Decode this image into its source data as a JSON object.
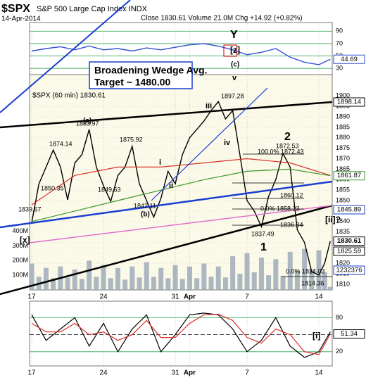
{
  "header": {
    "title": "$SPX",
    "subtitle": "S&P 500 Large Cap Index INDX",
    "date": "14-Apr-2014",
    "stats": "Close 1830.61 Volume 21.0M Chg +14.92 (+0.82%)"
  },
  "chart_data": [
    {
      "type": "line",
      "x": [
        0,
        1,
        2,
        3,
        4,
        5,
        6,
        7,
        8,
        9,
        10,
        11,
        12,
        13,
        14,
        15,
        16,
        17,
        18,
        19,
        20,
        20.8
      ],
      "series": [
        {
          "color": "#2f4fd3",
          "values": [
            58,
            62,
            65,
            60,
            66,
            60,
            62,
            58,
            63,
            60,
            64,
            68,
            70,
            66,
            60,
            52,
            56,
            62,
            48,
            40,
            36,
            44.69
          ]
        }
      ],
      "xlim": [
        -0.15,
        20.93
      ],
      "ylim": [
        20,
        104
      ],
      "yticks": [
        30,
        50,
        70,
        90
      ]
    },
    {
      "type": "line",
      "label": "$SPX (60 min) 1830.61",
      "x": [
        0,
        0.5,
        1,
        1.5,
        2,
        2.5,
        3,
        3.5,
        4,
        4.5,
        5,
        5.5,
        6,
        6.5,
        7,
        7.5,
        8,
        8.5,
        9,
        9.5,
        10,
        10.5,
        11,
        11.5,
        12,
        12.5,
        13,
        13.5,
        14,
        14.5,
        15,
        15.5,
        16,
        16.5,
        17,
        17.5,
        18,
        18.5,
        19,
        19.5,
        20,
        20.4,
        20.8
      ],
      "series": [
        {
          "color": "#000000",
          "values": [
            1839.57,
            1858,
            1866,
            1874.14,
            1866,
            1850.35,
            1868,
            1872,
            1883.97,
            1866,
            1857,
            1849.63,
            1862,
            1866,
            1875.92,
            1858,
            1850,
            1842.11,
            1851,
            1864,
            1858,
            1872,
            1880,
            1884,
            1888,
            1893,
            1897.28,
            1889,
            1893,
            1872,
            1850,
            1845,
            1837.49,
            1852,
            1860,
            1872.53,
            1866,
            1836,
            1830,
            1816,
            1814.36,
            1820,
            1830.61
          ]
        },
        {
          "color": "#d9302a",
          "x": [
            0,
            3,
            6,
            9,
            12,
            15,
            18,
            20.8
          ],
          "values": [
            1848,
            1862,
            1866,
            1866,
            1868,
            1870,
            1868,
            1862
          ]
        },
        {
          "color": "#3c9a2a",
          "x": [
            0,
            3,
            6,
            9,
            12,
            15,
            18,
            20.8
          ],
          "values": [
            1840,
            1845,
            1850,
            1855,
            1860,
            1864,
            1865,
            1861.87
          ]
        }
      ],
      "xlim": [
        -0.15,
        20.93
      ],
      "ylim": [
        1807.3,
        1910.2
      ],
      "yticks": [
        1810,
        1815,
        1820,
        1825,
        1830,
        1835,
        1840,
        1845,
        1850,
        1855,
        1860,
        1865,
        1870,
        1875,
        1880,
        1885,
        1890,
        1895,
        1900
      ],
      "xticks": [
        {
          "value": 0,
          "label": "17"
        },
        {
          "value": 5,
          "label": "24"
        },
        {
          "value": 10,
          "label": "31"
        },
        {
          "value": 11,
          "label": "Apr"
        },
        {
          "value": 15,
          "label": "7"
        },
        {
          "value": 20,
          "label": "14"
        }
      ],
      "grid": true,
      "volume": {
        "color": "#9aa6b8",
        "ylim": [
          0,
          1469
        ],
        "yticks": [
          {
            "value": 100,
            "label": "100M"
          },
          {
            "value": 200,
            "label": "200M"
          },
          {
            "value": 300,
            "label": "300M"
          },
          {
            "value": 400,
            "label": "400M"
          }
        ],
        "values": [
          180,
          90,
          150,
          80,
          160,
          85,
          140,
          75,
          200,
          90,
          170,
          80,
          150,
          70,
          160,
          85,
          190,
          90,
          150,
          80,
          170,
          75,
          160,
          80,
          180,
          90,
          160,
          85,
          230,
          110,
          250,
          120,
          220,
          100,
          210,
          95,
          260,
          130,
          280,
          140,
          270,
          120,
          21
        ]
      },
      "annotations": [
        "Y",
        "[z]",
        "(c)",
        "v",
        "Broadening Wedge Avg.",
        "Target ~ 1480.00",
        "1897.28",
        "iii",
        "iv",
        "(a)",
        "1883.97",
        "1874.14",
        "1875.92",
        "1850.35",
        "1849.63",
        "1842.11",
        "(b)",
        "i",
        "ii",
        "1839.57",
        "[x]",
        "2",
        "1872.53",
        "100.0% 1872.43",
        "1860.12",
        "0.0% 1858.23",
        "1836.34",
        "1837.49",
        "1",
        "0.0% 1814.03",
        "1814.36",
        "[i]",
        "[ii]?"
      ],
      "right_labels": [
        "1898.14",
        "1845.89",
        "1825.59",
        "1232376"
      ]
    },
    {
      "type": "line",
      "x": [
        0,
        1,
        2,
        3,
        4,
        5,
        6,
        7,
        8,
        9,
        10,
        11,
        12,
        13,
        14,
        15,
        16,
        17,
        18,
        19,
        20,
        20.8
      ],
      "series": [
        {
          "color": "#000000",
          "values": [
            85,
            40,
            60,
            80,
            30,
            70,
            20,
            60,
            85,
            20,
            50,
            85,
            88,
            85,
            60,
            20,
            40,
            80,
            30,
            10,
            20,
            55
          ]
        },
        {
          "color": "#d9302a",
          "values": [
            70,
            55,
            55,
            70,
            50,
            55,
            40,
            50,
            75,
            45,
            45,
            70,
            85,
            86,
            75,
            45,
            35,
            60,
            50,
            20,
            15,
            51.34
          ]
        }
      ],
      "xlim": [
        -0.15,
        20.93
      ],
      "ylim": [
        -5,
        109
      ],
      "yticks": [
        20,
        80
      ],
      "hlines": [
        50
      ]
    }
  ]
}
